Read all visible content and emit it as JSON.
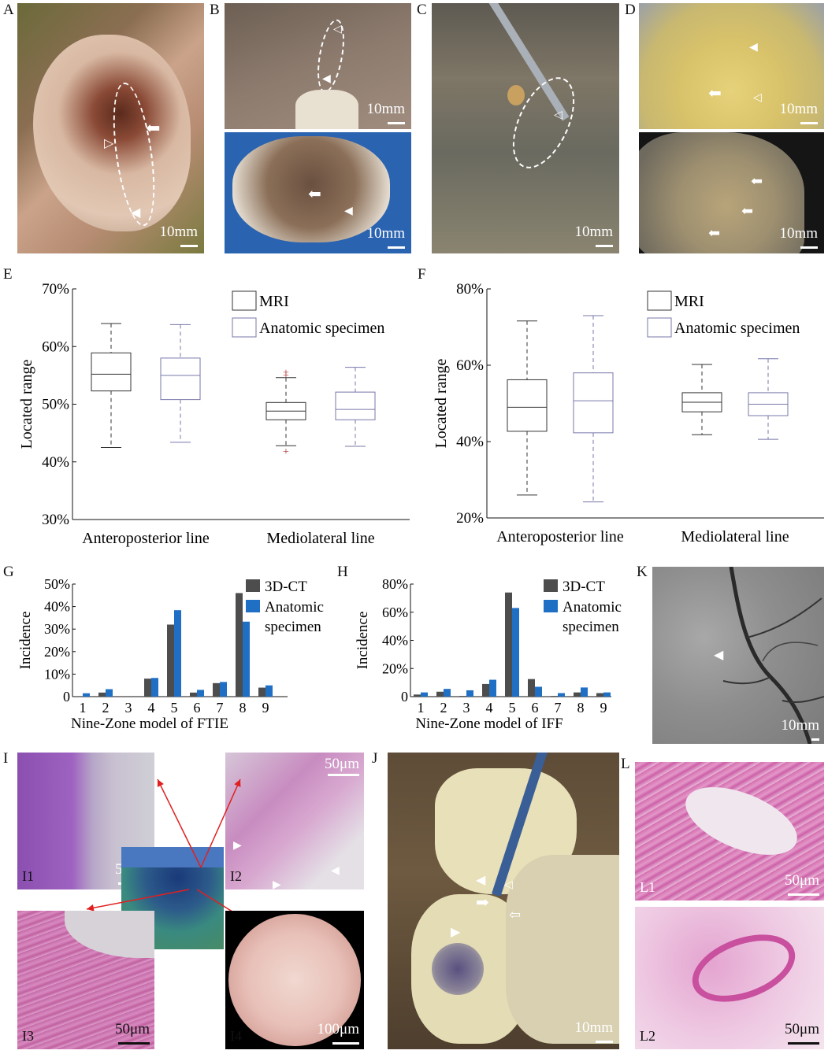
{
  "panels": {
    "A": {
      "label": "A",
      "scale": "10mm"
    },
    "B": {
      "label": "B",
      "scale_top": "10mm",
      "scale_bottom": "10mm"
    },
    "C": {
      "label": "C",
      "scale": "10mm"
    },
    "D": {
      "label": "D",
      "scale_top": "10mm",
      "scale_bottom": "10mm"
    },
    "E": {
      "label": "E"
    },
    "F": {
      "label": "F"
    },
    "G": {
      "label": "G"
    },
    "H": {
      "label": "H"
    },
    "K": {
      "label": "K",
      "scale": "10mm"
    },
    "I": {
      "label": "I",
      "sub": [
        "I1",
        "I2",
        "I3",
        "I4"
      ],
      "scales": [
        "50μm",
        "50μm",
        "50μm",
        "100μm"
      ]
    },
    "J": {
      "label": "J",
      "scale": "10mm"
    },
    "L": {
      "label": "L",
      "sub": [
        "L1",
        "L2"
      ],
      "scales": [
        "50μm",
        "50μm"
      ]
    }
  },
  "colors": {
    "mri": "#333333",
    "anatomic_box": "#7777aa",
    "ct_bar": "#4d4d4d",
    "spec_bar": "#1f6fc5",
    "outlier": "#b03030"
  },
  "chart_data": [
    {
      "type": "box",
      "panel": "E",
      "ylabel": "Located range",
      "ylim": [
        30,
        70
      ],
      "yticks": [
        "30%",
        "40%",
        "50%",
        "60%",
        "70%"
      ],
      "categories": [
        "Anteroposterior line",
        "Mediolateral line"
      ],
      "legend": [
        "MRI",
        "Anatomic specimen"
      ],
      "series": [
        {
          "name": "MRI",
          "boxes": [
            {
              "min": 42.5,
              "q1": 52.3,
              "median": 55.2,
              "q3": 58.9,
              "max": 64.0,
              "outliers": []
            },
            {
              "min": 42.8,
              "q1": 47.3,
              "median": 48.8,
              "q3": 50.3,
              "max": 54.6,
              "outliers": [
                41.9,
                55.1,
                55.6
              ]
            }
          ]
        },
        {
          "name": "Anatomic specimen",
          "boxes": [
            {
              "min": 43.4,
              "q1": 50.8,
              "median": 55.0,
              "q3": 58.0,
              "max": 63.8,
              "outliers": []
            },
            {
              "min": 42.7,
              "q1": 47.3,
              "median": 49.1,
              "q3": 52.1,
              "max": 56.4,
              "outliers": []
            }
          ]
        }
      ]
    },
    {
      "type": "box",
      "panel": "F",
      "ylabel": "Located range",
      "ylim": [
        20,
        80
      ],
      "yticks": [
        "20%",
        "40%",
        "60%",
        "80%"
      ],
      "categories": [
        "Anteroposterior line",
        "Mediolateral line"
      ],
      "legend": [
        "MRI",
        "Anatomic specimen"
      ],
      "series": [
        {
          "name": "MRI",
          "boxes": [
            {
              "min": 26.0,
              "q1": 42.7,
              "median": 49.0,
              "q3": 56.2,
              "max": 71.6,
              "outliers": []
            },
            {
              "min": 41.8,
              "q1": 47.8,
              "median": 50.3,
              "q3": 52.8,
              "max": 60.2,
              "outliers": []
            }
          ]
        },
        {
          "name": "Anatomic specimen",
          "boxes": [
            {
              "min": 24.2,
              "q1": 42.3,
              "median": 50.7,
              "q3": 58.0,
              "max": 73.0,
              "outliers": []
            },
            {
              "min": 40.6,
              "q1": 46.8,
              "median": 49.8,
              "q3": 52.8,
              "max": 61.7,
              "outliers": []
            }
          ]
        }
      ]
    },
    {
      "type": "bar",
      "panel": "G",
      "xlabel": "Nine-Zone model of FTIE",
      "ylabel": "Incidence",
      "ylim": [
        0,
        50
      ],
      "yticks": [
        "0",
        "10%",
        "20%",
        "30%",
        "40%",
        "50%"
      ],
      "categories": [
        "1",
        "2",
        "3",
        "4",
        "5",
        "6",
        "7",
        "8",
        "9"
      ],
      "legend": [
        "3D-CT",
        "Anatomic specimen"
      ],
      "series": [
        {
          "name": "3D-CT",
          "values": [
            0,
            1.8,
            0,
            8.0,
            32.0,
            1.8,
            6.0,
            46.0,
            4.0
          ]
        },
        {
          "name": "Anatomic specimen",
          "values": [
            1.5,
            3.3,
            0,
            8.3,
            38.4,
            3.0,
            6.5,
            33.3,
            5.0
          ]
        }
      ]
    },
    {
      "type": "bar",
      "panel": "H",
      "xlabel": "Nine-Zone model of IFF",
      "ylabel": "Incidence",
      "ylim": [
        0,
        80
      ],
      "yticks": [
        "0",
        "20%",
        "40%",
        "60%",
        "80%"
      ],
      "categories": [
        "1",
        "2",
        "3",
        "4",
        "5",
        "6",
        "7",
        "8",
        "9"
      ],
      "legend": [
        "3D-CT",
        "Anatomic specimen"
      ],
      "series": [
        {
          "name": "3D-CT",
          "values": [
            1.5,
            3.5,
            0.5,
            9.0,
            74.0,
            12.5,
            0.5,
            3.0,
            2.5
          ]
        },
        {
          "name": "Anatomic specimen",
          "values": [
            3.0,
            5.5,
            4.5,
            12.0,
            63.0,
            7.0,
            2.5,
            6.5,
            3.0
          ]
        }
      ]
    }
  ]
}
